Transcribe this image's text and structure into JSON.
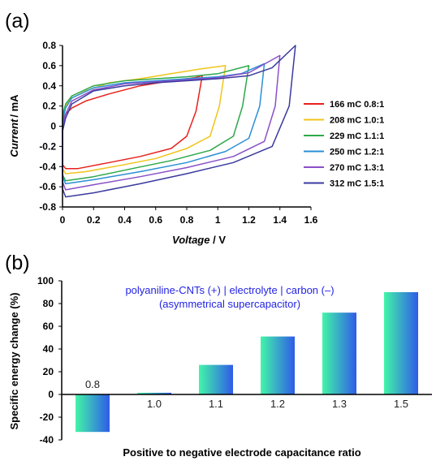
{
  "chart_data": [
    {
      "panel_label": "(a)",
      "type": "line",
      "xlabel_parts": [
        "Voltage",
        " / V"
      ],
      "ylabel_parts": [
        "Current",
        "/ mA"
      ],
      "xlim": [
        0,
        1.6
      ],
      "ylim": [
        -0.8,
        0.8
      ],
      "xticks": [
        "0",
        "0.2",
        "0.4",
        "0.6",
        "0.8",
        "1",
        "1.2",
        "1.4",
        "1.6"
      ],
      "yticks": [
        "0.8",
        "0.6",
        "0.4",
        "0.2",
        "0",
        "-0.2",
        "-0.4",
        "-0.6",
        "-0.8"
      ],
      "legend_position": "right",
      "series": [
        {
          "name": "166 mC 0.8:1",
          "color": "#e8201c",
          "vmax": 0.9,
          "upper": [
            [
              0.0,
              0.05
            ],
            [
              0.02,
              0.12
            ],
            [
              0.06,
              0.18
            ],
            [
              0.15,
              0.25
            ],
            [
              0.3,
              0.32
            ],
            [
              0.5,
              0.4
            ],
            [
              0.7,
              0.45
            ],
            [
              0.85,
              0.48
            ],
            [
              0.9,
              0.5
            ]
          ],
          "lower": [
            [
              0.0,
              -0.38
            ],
            [
              0.02,
              -0.42
            ],
            [
              0.1,
              -0.42
            ],
            [
              0.3,
              -0.36
            ],
            [
              0.5,
              -0.3
            ],
            [
              0.7,
              -0.22
            ],
            [
              0.8,
              -0.1
            ],
            [
              0.86,
              0.15
            ],
            [
              0.9,
              0.5
            ]
          ]
        },
        {
          "name": "208 mC 1.0:1",
          "color": "#f0c419",
          "vmax": 1.05,
          "upper": [
            [
              0.0,
              0.1
            ],
            [
              0.02,
              0.2
            ],
            [
              0.05,
              0.27
            ],
            [
              0.15,
              0.35
            ],
            [
              0.3,
              0.43
            ],
            [
              0.5,
              0.47
            ],
            [
              0.7,
              0.52
            ],
            [
              0.9,
              0.57
            ],
            [
              1.05,
              0.6
            ]
          ],
          "lower": [
            [
              0.0,
              -0.42
            ],
            [
              0.02,
              -0.47
            ],
            [
              0.15,
              -0.45
            ],
            [
              0.4,
              -0.38
            ],
            [
              0.6,
              -0.32
            ],
            [
              0.8,
              -0.22
            ],
            [
              0.95,
              -0.1
            ],
            [
              1.01,
              0.2
            ],
            [
              1.05,
              0.6
            ]
          ]
        },
        {
          "name": "229 mC 1.1:1",
          "color": "#2ea84a",
          "vmax": 1.2,
          "upper": [
            [
              0.0,
              0.1
            ],
            [
              0.02,
              0.22
            ],
            [
              0.06,
              0.3
            ],
            [
              0.2,
              0.4
            ],
            [
              0.4,
              0.45
            ],
            [
              0.6,
              0.47
            ],
            [
              0.8,
              0.49
            ],
            [
              1.0,
              0.52
            ],
            [
              1.2,
              0.6
            ]
          ],
          "lower": [
            [
              0.0,
              -0.48
            ],
            [
              0.02,
              -0.54
            ],
            [
              0.2,
              -0.5
            ],
            [
              0.45,
              -0.42
            ],
            [
              0.7,
              -0.34
            ],
            [
              0.95,
              -0.24
            ],
            [
              1.1,
              -0.1
            ],
            [
              1.16,
              0.2
            ],
            [
              1.2,
              0.6
            ]
          ]
        },
        {
          "name": "250 mC 1.2:1",
          "color": "#2a8fd6",
          "vmax": 1.3,
          "upper": [
            [
              0.0,
              0.05
            ],
            [
              0.02,
              0.18
            ],
            [
              0.06,
              0.28
            ],
            [
              0.2,
              0.38
            ],
            [
              0.4,
              0.43
            ],
            [
              0.6,
              0.45
            ],
            [
              0.8,
              0.47
            ],
            [
              1.0,
              0.49
            ],
            [
              1.15,
              0.52
            ],
            [
              1.3,
              0.62
            ]
          ],
          "lower": [
            [
              0.0,
              -0.5
            ],
            [
              0.02,
              -0.57
            ],
            [
              0.2,
              -0.53
            ],
            [
              0.5,
              -0.45
            ],
            [
              0.8,
              -0.36
            ],
            [
              1.05,
              -0.25
            ],
            [
              1.2,
              -0.12
            ],
            [
              1.27,
              0.2
            ],
            [
              1.3,
              0.62
            ]
          ]
        },
        {
          "name": "270 mC 1.3:1",
          "color": "#8a4fc7",
          "vmax": 1.4,
          "upper": [
            [
              0.0,
              0.0
            ],
            [
              0.02,
              0.12
            ],
            [
              0.06,
              0.25
            ],
            [
              0.2,
              0.36
            ],
            [
              0.4,
              0.42
            ],
            [
              0.6,
              0.44
            ],
            [
              0.8,
              0.46
            ],
            [
              1.0,
              0.48
            ],
            [
              1.2,
              0.53
            ],
            [
              1.4,
              0.7
            ]
          ],
          "lower": [
            [
              0.0,
              -0.55
            ],
            [
              0.02,
              -0.63
            ],
            [
              0.2,
              -0.58
            ],
            [
              0.5,
              -0.5
            ],
            [
              0.8,
              -0.41
            ],
            [
              1.1,
              -0.3
            ],
            [
              1.3,
              -0.15
            ],
            [
              1.37,
              0.2
            ],
            [
              1.4,
              0.7
            ]
          ]
        },
        {
          "name": "312 mC 1.5:1",
          "color": "#3a3a9e",
          "vmax": 1.5,
          "upper": [
            [
              0.0,
              -0.05
            ],
            [
              0.02,
              0.08
            ],
            [
              0.06,
              0.22
            ],
            [
              0.2,
              0.35
            ],
            [
              0.4,
              0.4
            ],
            [
              0.6,
              0.43
            ],
            [
              0.8,
              0.45
            ],
            [
              1.0,
              0.47
            ],
            [
              1.2,
              0.5
            ],
            [
              1.35,
              0.58
            ],
            [
              1.5,
              0.8
            ]
          ],
          "lower": [
            [
              0.0,
              -0.62
            ],
            [
              0.02,
              -0.7
            ],
            [
              0.2,
              -0.66
            ],
            [
              0.5,
              -0.57
            ],
            [
              0.8,
              -0.47
            ],
            [
              1.1,
              -0.36
            ],
            [
              1.35,
              -0.2
            ],
            [
              1.46,
              0.2
            ],
            [
              1.5,
              0.8
            ]
          ]
        }
      ]
    },
    {
      "panel_label": "(b)",
      "type": "bar",
      "xlabel": "Positive to negative electrode capacitance ratio",
      "ylabel": "Specific energy change (%)",
      "ylim": [
        -40,
        100
      ],
      "yticks": [
        "100",
        "80",
        "60",
        "40",
        "20",
        "0",
        "-20",
        "-40"
      ],
      "categories": [
        "0.8",
        "1.0",
        "1.1",
        "1.2",
        "1.3",
        "1.5"
      ],
      "values": [
        -33,
        1.5,
        26,
        51,
        72,
        90
      ],
      "annotation": [
        "polyaniline-CNTs (+) | electrolyte | carbon (–)",
        "(asymmetrical supercapacitor)"
      ],
      "bar_gradient": [
        "#42f5a8",
        "#2f5be8"
      ]
    }
  ]
}
